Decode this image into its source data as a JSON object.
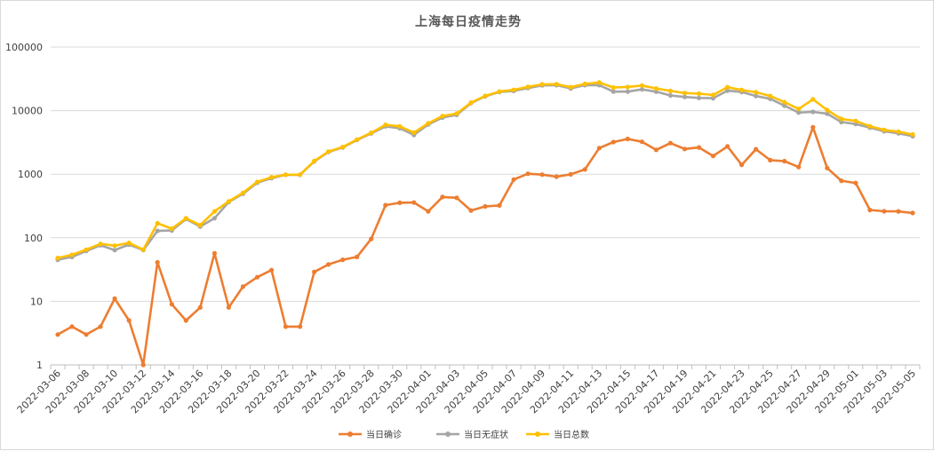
{
  "chart_data": {
    "type": "line",
    "title": "上海每日疫情走势",
    "xlabel": "",
    "ylabel": "",
    "y_scale": "log",
    "ylim": [
      1,
      100000
    ],
    "y_ticks": [
      "1",
      "10",
      "100",
      "1000",
      "10000",
      "100000"
    ],
    "grid": "horizontal",
    "legend_position": "bottom",
    "x": [
      "2022-03-06",
      "2022-03-07",
      "2022-03-08",
      "2022-03-09",
      "2022-03-10",
      "2022-03-11",
      "2022-03-12",
      "2022-03-13",
      "2022-03-14",
      "2022-03-15",
      "2022-03-16",
      "2022-03-17",
      "2022-03-18",
      "2022-03-19",
      "2022-03-20",
      "2022-03-21",
      "2022-03-22",
      "2022-03-23",
      "2022-03-24",
      "2022-03-25",
      "2022-03-26",
      "2022-03-27",
      "2022-03-28",
      "2022-03-29",
      "2022-03-30",
      "2022-03-31",
      "2022-04-01",
      "2022-04-02",
      "2022-04-03",
      "2022-04-04",
      "2022-04-05",
      "2022-04-06",
      "2022-04-07",
      "2022-04-08",
      "2022-04-09",
      "2022-04-10",
      "2022-04-11",
      "2022-04-12",
      "2022-04-13",
      "2022-04-14",
      "2022-04-15",
      "2022-04-16",
      "2022-04-17",
      "2022-04-18",
      "2022-04-19",
      "2022-04-20",
      "2022-04-21",
      "2022-04-22",
      "2022-04-23",
      "2022-04-24",
      "2022-04-25",
      "2022-04-26",
      "2022-04-27",
      "2022-04-28",
      "2022-04-29",
      "2022-04-30",
      "2022-05-01",
      "2022-05-02",
      "2022-05-03",
      "2022-05-04",
      "2022-05-05"
    ],
    "x_tick_labels": [
      "2022-03-06",
      "2022-03-08",
      "2022-03-10",
      "2022-03-12",
      "2022-03-14",
      "2022-03-16",
      "2022-03-18",
      "2022-03-20",
      "2022-03-22",
      "2022-03-24",
      "2022-03-26",
      "2022-03-28",
      "2022-03-30",
      "2022-04-01",
      "2022-04-03",
      "2022-04-05",
      "2022-04-07",
      "2022-04-09",
      "2022-04-11",
      "2022-04-13",
      "2022-04-15",
      "2022-04-17",
      "2022-04-19",
      "2022-04-21",
      "2022-04-23",
      "2022-04-25",
      "2022-04-27",
      "2022-04-29",
      "2022-05-01",
      "2022-05-03",
      "2022-05-05"
    ],
    "series": [
      {
        "name": "当日确诊",
        "color": "#ED7D31",
        "values": [
          3,
          4,
          3,
          4,
          11,
          5,
          1,
          41,
          9,
          5,
          8,
          57,
          8,
          17,
          24,
          31,
          4,
          4,
          29,
          38,
          45,
          50,
          96,
          326,
          355,
          358,
          260,
          438,
          425,
          268,
          311,
          322,
          824,
          1015,
          983,
          914,
          994,
          1189,
          2573,
          3200,
          3590,
          3238,
          2417,
          3084,
          2494,
          2634,
          1931,
          2736,
          1401,
          2472,
          1661,
          1606,
          1292,
          5487,
          1249,
          788,
          727,
          274,
          261,
          260,
          245
        ]
      },
      {
        "name": "当日无症状",
        "color": "#A5A5A5",
        "values": [
          45,
          50,
          62,
          76,
          64,
          78,
          64,
          128,
          130,
          197,
          150,
          203,
          366,
          492,
          734,
          865,
          977,
          979,
          1582,
          2231,
          2631,
          3450,
          4381,
          5656,
          5298,
          4144,
          6051,
          7788,
          8581,
          13086,
          16766,
          19660,
          20398,
          22609,
          24944,
          25173,
          22348,
          25141,
          25146,
          19872,
          19923,
          21582,
          19831,
          17332,
          16407,
          15861,
          15698,
          20634,
          19657,
          16983,
          15319,
          11956,
          9330,
          9545,
          8932,
          6606,
          6155,
          5395,
          4722,
          4390,
          3961
        ]
      },
      {
        "name": "当日总数",
        "color": "#FFC000",
        "values": [
          48,
          54,
          65,
          80,
          75,
          83,
          65,
          169,
          139,
          202,
          158,
          260,
          374,
          509,
          758,
          896,
          981,
          983,
          1611,
          2269,
          2676,
          3500,
          4477,
          5982,
          5653,
          4502,
          6311,
          8226,
          9006,
          13354,
          17077,
          19982,
          21222,
          23624,
          25927,
          26087,
          23342,
          26330,
          27719,
          23072,
          23513,
          24820,
          22248,
          20416,
          18901,
          18495,
          17629,
          23370,
          21058,
          19455,
          16980,
          13562,
          10622,
          15032,
          10181,
          7394,
          6882,
          5669,
          4983,
          4650,
          4206
        ]
      }
    ]
  }
}
